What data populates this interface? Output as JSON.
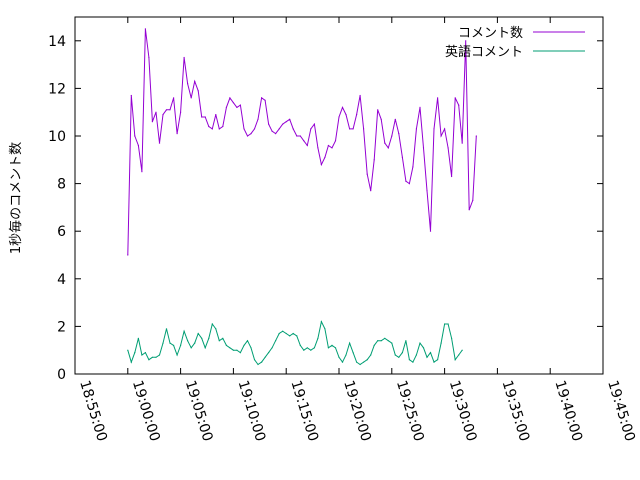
{
  "chart_data": {
    "type": "line",
    "title": "",
    "xlabel": "",
    "ylabel": "1秒毎のコメント数",
    "xlim": [
      "18:55:00",
      "19:45:00"
    ],
    "xticks": [
      "18:55:00",
      "19:00:00",
      "19:05:00",
      "19:10:00",
      "19:15:00",
      "19:20:00",
      "19:25:00",
      "19:30:00",
      "19:35:00",
      "19:40:00",
      "19:45:00"
    ],
    "ylim": [
      0,
      15
    ],
    "yticks": [
      0,
      2,
      4,
      6,
      8,
      10,
      12,
      14
    ],
    "grid": false,
    "legend_position": "top-right",
    "series": [
      {
        "name": "コメント数",
        "color": "#9400d3",
        "points": [
          [
            "19:00:00",
            5.0
          ],
          [
            "19:00:20",
            11.7
          ],
          [
            "19:00:40",
            10.0
          ],
          [
            "19:01:00",
            9.6
          ],
          [
            "19:01:20",
            8.5
          ],
          [
            "19:01:40",
            14.5
          ],
          [
            "19:02:00",
            13.3
          ],
          [
            "19:02:20",
            10.6
          ],
          [
            "19:02:40",
            11.0
          ],
          [
            "19:03:00",
            9.7
          ],
          [
            "19:03:20",
            10.9
          ],
          [
            "19:03:40",
            11.1
          ],
          [
            "19:04:00",
            11.1
          ],
          [
            "19:04:20",
            11.6
          ],
          [
            "19:04:40",
            10.1
          ],
          [
            "19:05:00",
            11.0
          ],
          [
            "19:05:20",
            13.3
          ],
          [
            "19:05:40",
            12.2
          ],
          [
            "19:06:00",
            11.6
          ],
          [
            "19:06:20",
            12.3
          ],
          [
            "19:06:40",
            11.9
          ],
          [
            "19:07:00",
            10.8
          ],
          [
            "19:07:20",
            10.8
          ],
          [
            "19:07:40",
            10.4
          ],
          [
            "19:08:00",
            10.3
          ],
          [
            "19:08:20",
            10.9
          ],
          [
            "19:08:40",
            10.3
          ],
          [
            "19:09:00",
            10.4
          ],
          [
            "19:09:20",
            11.2
          ],
          [
            "19:09:40",
            11.6
          ],
          [
            "19:10:00",
            11.4
          ],
          [
            "19:10:20",
            11.2
          ],
          [
            "19:10:40",
            11.3
          ],
          [
            "19:11:00",
            10.3
          ],
          [
            "19:11:20",
            10.0
          ],
          [
            "19:11:40",
            10.1
          ],
          [
            "19:12:00",
            10.3
          ],
          [
            "19:12:20",
            10.7
          ],
          [
            "19:12:40",
            11.6
          ],
          [
            "19:13:00",
            11.5
          ],
          [
            "19:13:20",
            10.5
          ],
          [
            "19:13:40",
            10.2
          ],
          [
            "19:14:00",
            10.1
          ],
          [
            "19:14:20",
            10.3
          ],
          [
            "19:14:40",
            10.5
          ],
          [
            "19:15:00",
            10.6
          ],
          [
            "19:15:20",
            10.7
          ],
          [
            "19:15:40",
            10.3
          ],
          [
            "19:16:00",
            10.0
          ],
          [
            "19:16:20",
            10.0
          ],
          [
            "19:16:40",
            9.8
          ],
          [
            "19:17:00",
            9.6
          ],
          [
            "19:17:20",
            10.3
          ],
          [
            "19:17:40",
            10.5
          ],
          [
            "19:18:00",
            9.5
          ],
          [
            "19:18:20",
            8.8
          ],
          [
            "19:18:40",
            9.1
          ],
          [
            "19:19:00",
            9.6
          ],
          [
            "19:19:20",
            9.5
          ],
          [
            "19:19:40",
            9.8
          ],
          [
            "19:20:00",
            10.8
          ],
          [
            "19:20:20",
            11.2
          ],
          [
            "19:20:40",
            10.9
          ],
          [
            "19:21:00",
            10.3
          ],
          [
            "19:21:20",
            10.3
          ],
          [
            "19:21:40",
            10.9
          ],
          [
            "19:22:00",
            11.7
          ],
          [
            "19:22:20",
            10.3
          ],
          [
            "19:22:40",
            8.4
          ],
          [
            "19:23:00",
            7.7
          ],
          [
            "19:23:20",
            9.0
          ],
          [
            "19:23:40",
            11.1
          ],
          [
            "19:24:00",
            10.7
          ],
          [
            "19:24:20",
            9.7
          ],
          [
            "19:24:40",
            9.5
          ],
          [
            "19:25:00",
            10.0
          ],
          [
            "19:25:20",
            10.7
          ],
          [
            "19:25:40",
            10.1
          ],
          [
            "19:26:00",
            9.1
          ],
          [
            "19:26:20",
            8.1
          ],
          [
            "19:26:40",
            8.0
          ],
          [
            "19:27:00",
            8.7
          ],
          [
            "19:27:20",
            10.3
          ],
          [
            "19:27:40",
            11.2
          ],
          [
            "19:28:00",
            9.5
          ],
          [
            "19:28:20",
            7.7
          ],
          [
            "19:28:40",
            6.0
          ],
          [
            "19:29:00",
            10.3
          ],
          [
            "19:29:20",
            11.6
          ],
          [
            "19:29:40",
            10.0
          ],
          [
            "19:30:00",
            10.3
          ],
          [
            "19:30:20",
            9.5
          ],
          [
            "19:30:40",
            8.3
          ],
          [
            "19:31:00",
            11.6
          ],
          [
            "19:31:20",
            11.3
          ],
          [
            "19:31:40",
            9.7
          ],
          [
            "19:32:00",
            14.0
          ],
          [
            "19:32:20",
            6.9
          ],
          [
            "19:32:40",
            7.3
          ],
          [
            "19:33:00",
            10.0
          ]
        ]
      },
      {
        "name": "英語コメント",
        "color": "#009e73",
        "points": [
          [
            "19:00:00",
            1.0
          ],
          [
            "19:00:20",
            0.5
          ],
          [
            "19:00:40",
            0.9
          ],
          [
            "19:01:00",
            1.5
          ],
          [
            "19:01:20",
            0.8
          ],
          [
            "19:01:40",
            0.9
          ],
          [
            "19:02:00",
            0.6
          ],
          [
            "19:02:20",
            0.7
          ],
          [
            "19:02:40",
            0.7
          ],
          [
            "19:03:00",
            0.8
          ],
          [
            "19:03:20",
            1.3
          ],
          [
            "19:03:40",
            1.9
          ],
          [
            "19:04:00",
            1.3
          ],
          [
            "19:04:20",
            1.2
          ],
          [
            "19:04:40",
            0.8
          ],
          [
            "19:05:00",
            1.2
          ],
          [
            "19:05:20",
            1.8
          ],
          [
            "19:05:40",
            1.4
          ],
          [
            "19:06:00",
            1.1
          ],
          [
            "19:06:20",
            1.3
          ],
          [
            "19:06:40",
            1.7
          ],
          [
            "19:07:00",
            1.5
          ],
          [
            "19:07:20",
            1.1
          ],
          [
            "19:07:40",
            1.5
          ],
          [
            "19:08:00",
            2.1
          ],
          [
            "19:08:20",
            1.9
          ],
          [
            "19:08:40",
            1.4
          ],
          [
            "19:09:00",
            1.5
          ],
          [
            "19:09:20",
            1.2
          ],
          [
            "19:09:40",
            1.1
          ],
          [
            "19:10:00",
            1.0
          ],
          [
            "19:10:20",
            1.0
          ],
          [
            "19:10:40",
            0.9
          ],
          [
            "19:11:00",
            1.2
          ],
          [
            "19:11:20",
            1.4
          ],
          [
            "19:11:40",
            1.1
          ],
          [
            "19:12:00",
            0.6
          ],
          [
            "19:12:20",
            0.4
          ],
          [
            "19:12:40",
            0.5
          ],
          [
            "19:13:00",
            0.7
          ],
          [
            "19:13:20",
            0.9
          ],
          [
            "19:13:40",
            1.1
          ],
          [
            "19:14:00",
            1.4
          ],
          [
            "19:14:20",
            1.7
          ],
          [
            "19:14:40",
            1.8
          ],
          [
            "19:15:00",
            1.7
          ],
          [
            "19:15:20",
            1.6
          ],
          [
            "19:15:40",
            1.7
          ],
          [
            "19:16:00",
            1.6
          ],
          [
            "19:16:20",
            1.2
          ],
          [
            "19:16:40",
            1.0
          ],
          [
            "19:17:00",
            1.1
          ],
          [
            "19:17:20",
            1.0
          ],
          [
            "19:17:40",
            1.1
          ],
          [
            "19:18:00",
            1.5
          ],
          [
            "19:18:20",
            2.2
          ],
          [
            "19:18:40",
            1.9
          ],
          [
            "19:19:00",
            1.1
          ],
          [
            "19:19:20",
            1.2
          ],
          [
            "19:19:40",
            1.1
          ],
          [
            "19:20:00",
            0.7
          ],
          [
            "19:20:20",
            0.5
          ],
          [
            "19:20:40",
            0.8
          ],
          [
            "19:21:00",
            1.3
          ],
          [
            "19:21:20",
            0.9
          ],
          [
            "19:21:40",
            0.5
          ],
          [
            "19:22:00",
            0.4
          ],
          [
            "19:22:20",
            0.5
          ],
          [
            "19:22:40",
            0.6
          ],
          [
            "19:23:00",
            0.8
          ],
          [
            "19:23:20",
            1.2
          ],
          [
            "19:23:40",
            1.4
          ],
          [
            "19:24:00",
            1.4
          ],
          [
            "19:24:20",
            1.5
          ],
          [
            "19:24:40",
            1.4
          ],
          [
            "19:25:00",
            1.3
          ],
          [
            "19:25:20",
            0.8
          ],
          [
            "19:25:40",
            0.7
          ],
          [
            "19:26:00",
            0.9
          ],
          [
            "19:26:20",
            1.4
          ],
          [
            "19:26:40",
            0.6
          ],
          [
            "19:27:00",
            0.5
          ],
          [
            "19:27:20",
            0.8
          ],
          [
            "19:27:40",
            1.3
          ],
          [
            "19:28:00",
            1.1
          ],
          [
            "19:28:20",
            0.7
          ],
          [
            "19:28:40",
            0.9
          ],
          [
            "19:29:00",
            0.5
          ],
          [
            "19:29:20",
            0.6
          ],
          [
            "19:29:40",
            1.3
          ],
          [
            "19:30:00",
            2.1
          ],
          [
            "19:30:20",
            2.1
          ],
          [
            "19:30:40",
            1.5
          ],
          [
            "19:31:00",
            0.6
          ],
          [
            "19:31:20",
            0.8
          ],
          [
            "19:31:40",
            1.0
          ]
        ]
      }
    ]
  }
}
